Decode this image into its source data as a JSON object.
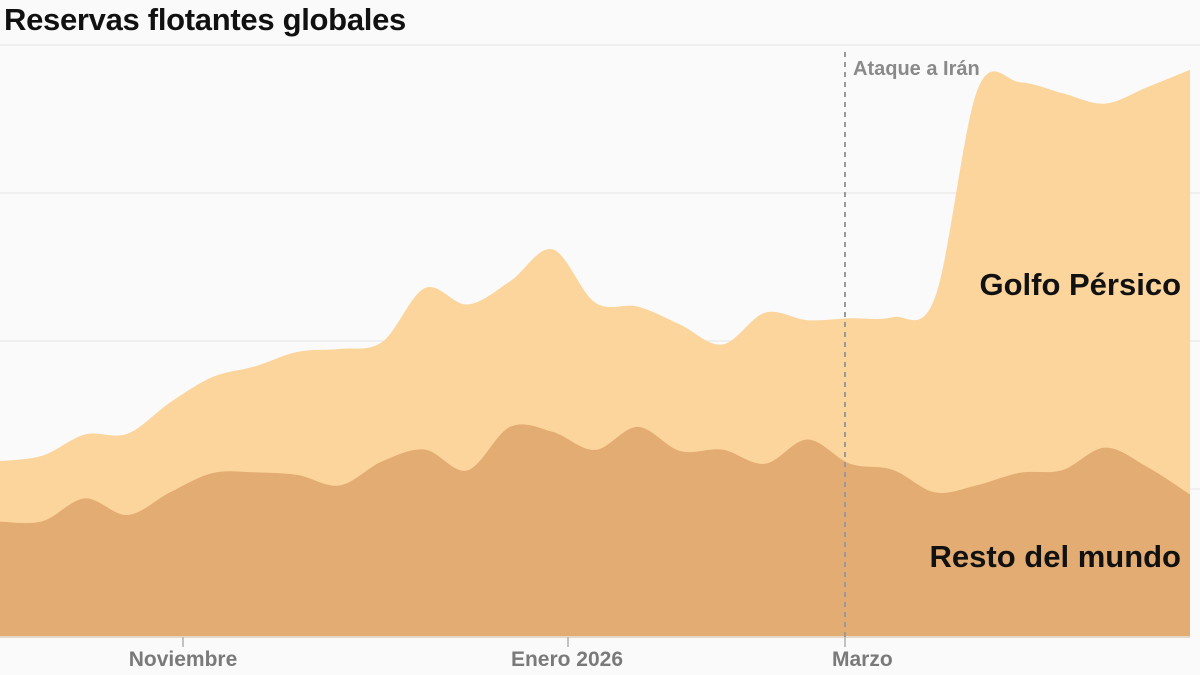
{
  "chart_data": {
    "type": "area",
    "stacked": true,
    "title": "Reservas flotantes globales",
    "xlabel": "",
    "ylabel": "",
    "grid": true,
    "x_ticks": [
      "Noviembre",
      "Enero 2026",
      "Marzo"
    ],
    "annotations": [
      {
        "label": "Ataque a Irán",
        "kind": "vertical-dashed-line"
      }
    ],
    "series": [
      {
        "name": "Resto del mundo",
        "color": "#e2ac72",
        "values": [
          76.8,
          77.2,
          92.4,
          81.3,
          96.4,
          109.3,
          109.7,
          108.0,
          101.1,
          117.2,
          124.9,
          111.1,
          140.1,
          136.8,
          124.7,
          140.1,
          124.0,
          124.9,
          115.5,
          131.7,
          115.5,
          111.5,
          96.4,
          101.3,
          109.5,
          111.3,
          126.3,
          113.3,
          95.1
        ]
      },
      {
        "name": "Golfo Pérsico",
        "color": "#fcd59d",
        "values": [
          40.5,
          43.7,
          42.6,
          54.2,
          59.9,
          64.0,
          70.7,
          82.1,
          91.0,
          79.6,
          107.8,
          110.6,
          97.0,
          121.7,
          98.3,
          80.2,
          84.3,
          70.1,
          100.7,
          79.5,
          97.0,
          101.7,
          130.0,
          263.6,
          260.4,
          251.2,
          229.3,
          253.3,
          283.1
        ]
      }
    ]
  }
}
